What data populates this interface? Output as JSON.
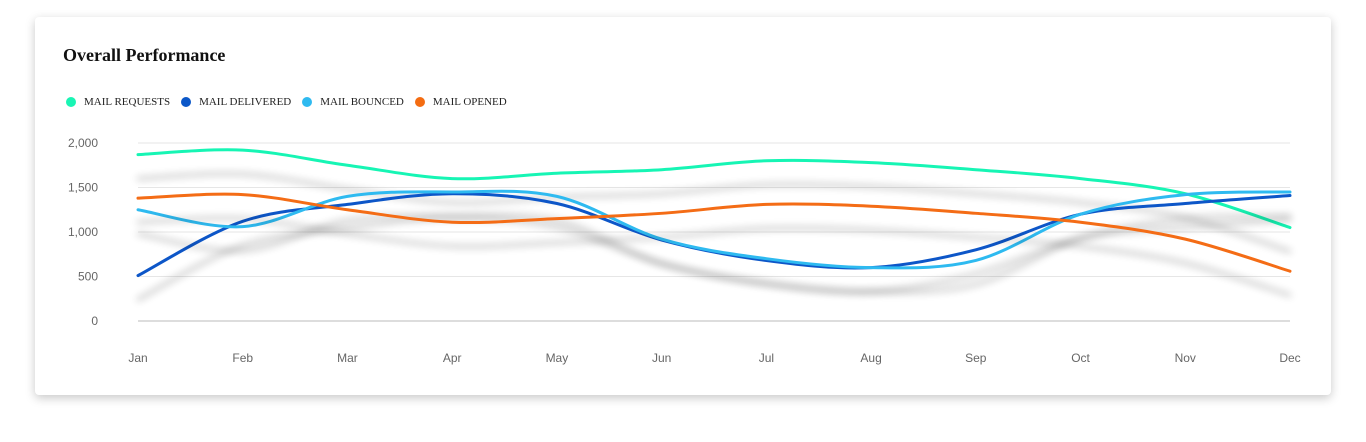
{
  "header": {
    "title": "Overall Performance"
  },
  "legend": [
    {
      "label": "MAIL REQUESTS",
      "color": "#19f5b4"
    },
    {
      "label": "MAIL DELIVERED",
      "color": "#0b57c8"
    },
    {
      "label": "MAIL BOUNCED",
      "color": "#2fbaf0"
    },
    {
      "label": "MAIL OPENED",
      "color": "#f46c12"
    }
  ],
  "chart_data": {
    "type": "line",
    "categories": [
      "Jan",
      "Feb",
      "Mar",
      "Apr",
      "May",
      "Jun",
      "Jul",
      "Aug",
      "Sep",
      "Oct",
      "Nov",
      "Dec"
    ],
    "yticks": [
      "2,000",
      "1,500",
      "1,000",
      "500",
      "0"
    ],
    "ylim": [
      0,
      2000
    ],
    "grid": true,
    "smooth": true,
    "legend_position": "top-left",
    "series": [
      {
        "name": "MAIL REQUESTS",
        "color": "#19f5b4",
        "values": [
          1870,
          1920,
          1750,
          1600,
          1660,
          1700,
          1800,
          1780,
          1700,
          1600,
          1430,
          1050
        ]
      },
      {
        "name": "MAIL DELIVERED",
        "color": "#0b57c8",
        "values": [
          510,
          1120,
          1310,
          1430,
          1320,
          910,
          680,
          600,
          800,
          1200,
          1320,
          1410
        ]
      },
      {
        "name": "MAIL BOUNCED",
        "color": "#2fbaf0",
        "values": [
          1250,
          1060,
          1400,
          1450,
          1400,
          920,
          700,
          600,
          680,
          1200,
          1420,
          1450
        ]
      },
      {
        "name": "MAIL OPENED",
        "color": "#f46c12",
        "values": [
          1380,
          1420,
          1250,
          1110,
          1150,
          1210,
          1310,
          1290,
          1210,
          1110,
          920,
          560
        ]
      }
    ]
  }
}
